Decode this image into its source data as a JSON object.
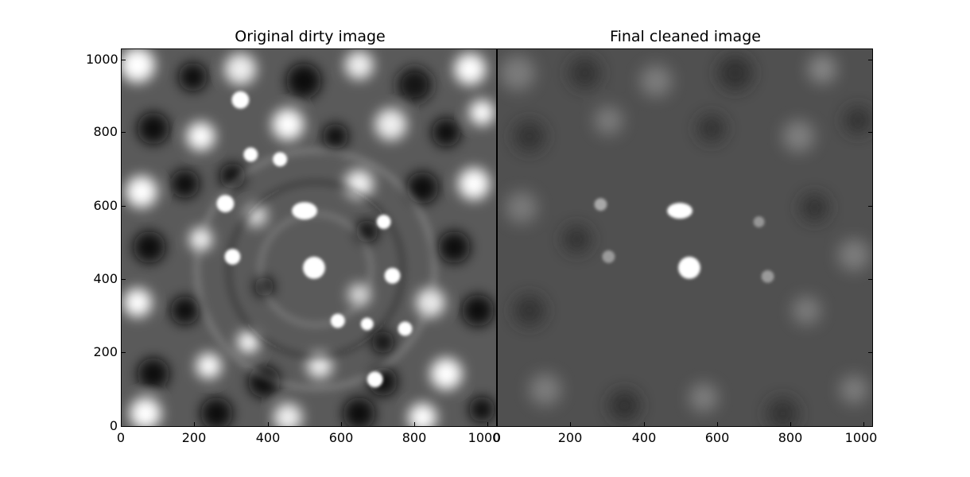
{
  "panels": [
    {
      "title": "Original dirty image"
    },
    {
      "title": "Final cleaned image"
    }
  ],
  "axes": {
    "x_ticks": [
      "0",
      "200",
      "400",
      "600",
      "800",
      "1000"
    ],
    "y_ticks": [
      "0",
      "200",
      "400",
      "600",
      "800",
      "1000"
    ]
  },
  "colors": {
    "background": "#ffffff",
    "frame": "#000000",
    "bright_source": "#ffffff",
    "noise_dark": "#111111"
  }
}
